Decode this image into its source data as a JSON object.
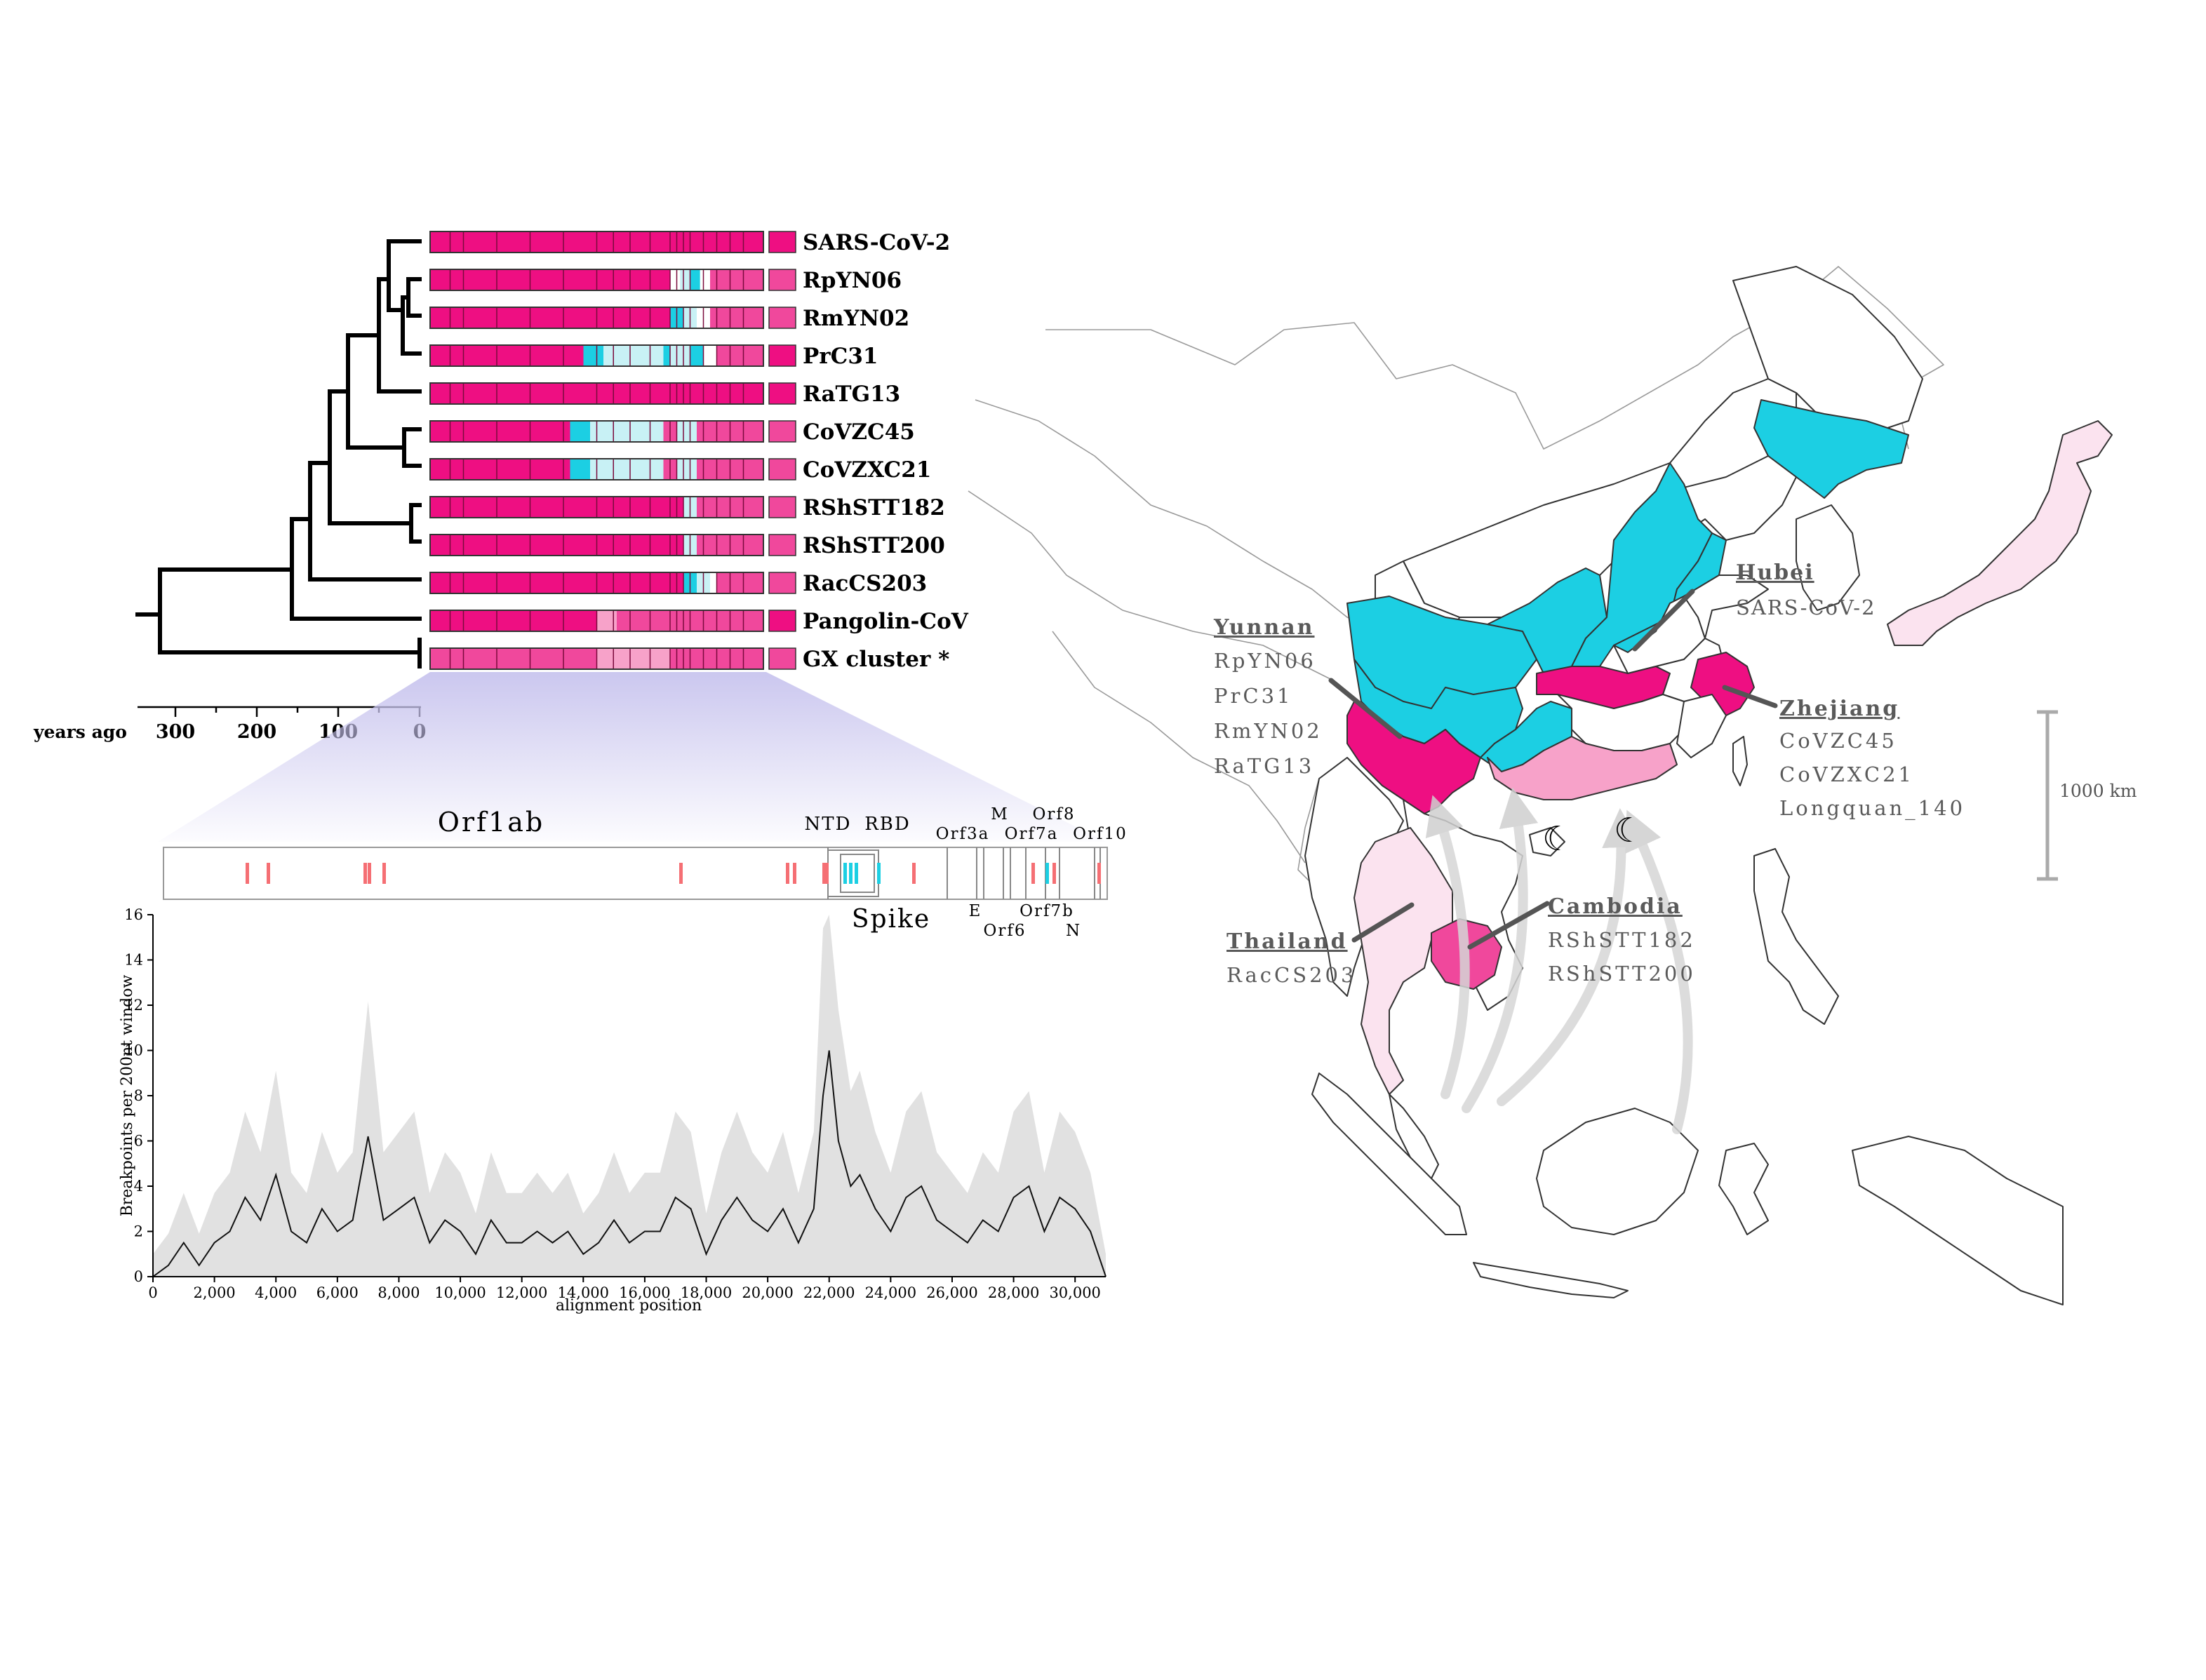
{
  "colors": {
    "magenta": "#ee0f82",
    "magenta_mid": "#f0489c",
    "pink": "#f7a2c9",
    "pink_pale": "#fbe3ef",
    "cyan": "#1ccfe3",
    "cyan_pale": "#c8f1f5",
    "breakpoint_red": "#f56f74",
    "gray_band": "#e1e1e1",
    "lavender": "#c8c4ee",
    "label_gray": "#5a5a5a",
    "arrow_gray": "#cfcfcf"
  },
  "tree": {
    "axis_label": "years ago",
    "ticks": [
      "300",
      "200",
      "100",
      "0"
    ]
  },
  "taxa": [
    {
      "name": "SARS-CoV-2",
      "tip_color": "magenta"
    },
    {
      "name": "RpYN06",
      "tip_color": "magenta_mid"
    },
    {
      "name": "RmYN02",
      "tip_color": "magenta_mid"
    },
    {
      "name": "PrC31",
      "tip_color": "magenta"
    },
    {
      "name": "RaTG13",
      "tip_color": "magenta"
    },
    {
      "name": "CoVZC45",
      "tip_color": "magenta_mid"
    },
    {
      "name": "CoVZXC21",
      "tip_color": "magenta_mid"
    },
    {
      "name": "RShSTT182",
      "tip_color": "magenta_mid"
    },
    {
      "name": "RShSTT200",
      "tip_color": "magenta_mid"
    },
    {
      "name": "RacCS203",
      "tip_color": "magenta_mid"
    },
    {
      "name": "Pangolin-CoV",
      "tip_color": "magenta"
    },
    {
      "name": "GX cluster *",
      "tip_color": "magenta_mid"
    }
  ],
  "genome_map": {
    "labels": {
      "orf1ab": "Orf1ab",
      "ntd": "NTD",
      "rbd": "RBD",
      "spike": "Spike",
      "m": "M",
      "orf8": "Orf8",
      "orf3a": "Orf3a",
      "orf7a": "Orf7a",
      "orf10": "Orf10",
      "e": "E",
      "orf6": "Orf6",
      "orf7b": "Orf7b",
      "n": "N"
    }
  },
  "chart_data": {
    "type": "area",
    "ylabel": "Breakpoints per 200nt window",
    "xlabel": "alignment position",
    "xlim": [
      0,
      31000
    ],
    "ylim": [
      0,
      16
    ],
    "x_ticks": [
      "0",
      "2,000",
      "4,000",
      "6,000",
      "8,000",
      "10,000",
      "12,000",
      "14,000",
      "16,000",
      "18,000",
      "20,000",
      "22,000",
      "24,000",
      "26,000",
      "28,000",
      "30,000"
    ],
    "y_ticks": [
      "0",
      "2",
      "4",
      "6",
      "8",
      "10",
      "12",
      "14",
      "16"
    ],
    "series": [
      {
        "x": [
          0,
          500,
          1000,
          1500,
          2000,
          2500,
          3000,
          3500,
          4000,
          4500,
          5000,
          5500,
          6000,
          6500,
          7000,
          7500,
          8000,
          8500,
          9000,
          9500,
          10000,
          10500,
          11000,
          11500,
          12000,
          12500,
          13000,
          13500,
          14000,
          14500,
          15000,
          15500,
          16000,
          16500,
          17000,
          17500,
          18000,
          18500,
          19000,
          19500,
          20000,
          20500,
          21000,
          21500,
          21800,
          22000,
          22300,
          22700,
          23000,
          23500,
          24000,
          24500,
          25000,
          25500,
          26000,
          26500,
          27000,
          27500,
          28000,
          28500,
          29000,
          29500,
          30000,
          30500,
          31000
        ],
        "y": [
          0,
          0.5,
          1.5,
          0.5,
          1.5,
          2,
          3.5,
          2.5,
          4.5,
          2,
          1.5,
          3,
          2,
          2.5,
          6.2,
          2.5,
          3,
          3.5,
          1.5,
          2.5,
          2,
          1,
          2.5,
          1.5,
          1.5,
          2,
          1.5,
          2,
          1,
          1.5,
          2.5,
          1.5,
          2,
          2,
          3.5,
          3,
          1,
          2.5,
          3.5,
          2.5,
          2,
          3,
          1.5,
          3,
          8,
          10,
          6,
          4,
          4.5,
          3,
          2,
          3.5,
          4,
          2.5,
          2,
          1.5,
          2.5,
          2,
          3.5,
          4,
          2,
          3.5,
          3,
          2,
          0
        ]
      }
    ]
  },
  "map": {
    "regions": [
      {
        "name": "Hubei",
        "samples": [
          "SARS-CoV-2"
        ]
      },
      {
        "name": "Yunnan",
        "samples": [
          "RpYN06",
          "PrC31",
          "RmYN02",
          "RaTG13"
        ]
      },
      {
        "name": "Zhejiang",
        "samples": [
          "CoVZC45",
          "CoVZXC21",
          "Longquan_140"
        ]
      },
      {
        "name": "Thailand",
        "samples": [
          "RacCS203"
        ]
      },
      {
        "name": "Cambodia",
        "samples": [
          "RShSTT182",
          "RShSTT200"
        ]
      }
    ],
    "scale_label": "1000 km"
  }
}
